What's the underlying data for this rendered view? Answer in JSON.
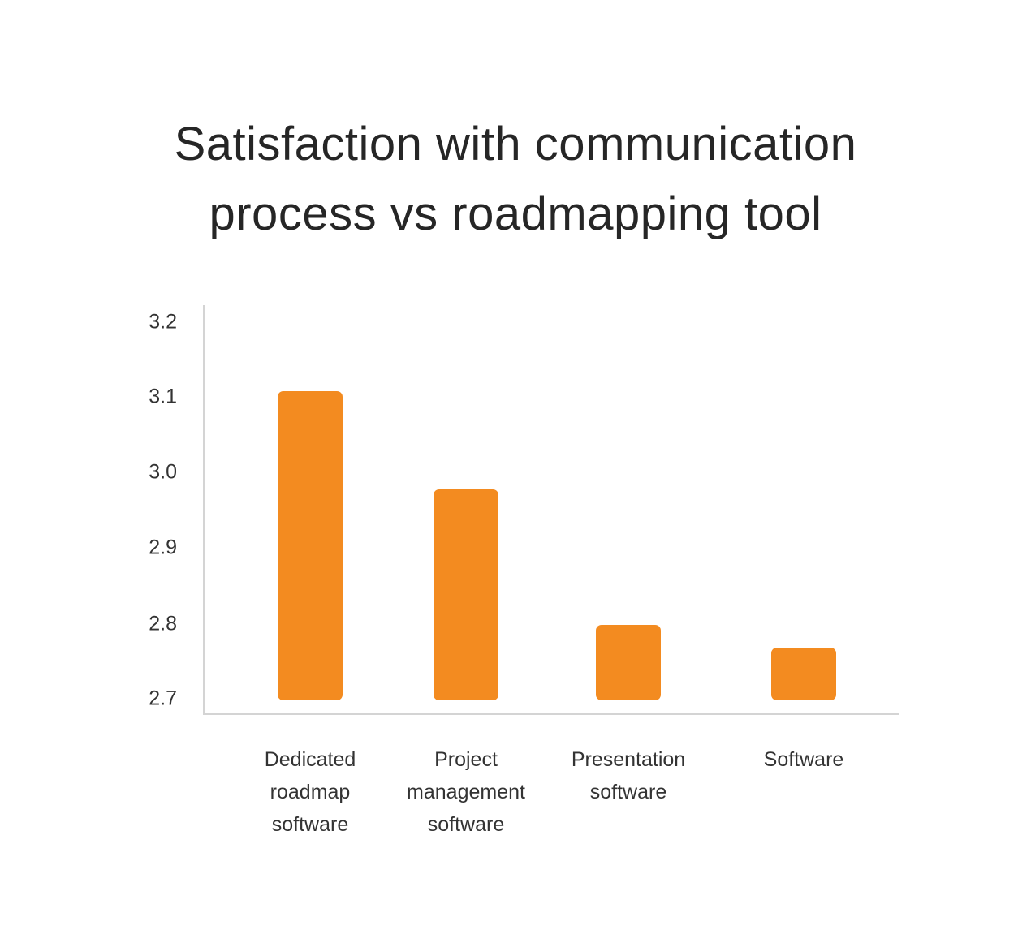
{
  "chart_data": {
    "type": "bar",
    "title": "Satisfaction with communication process vs roadmapping tool",
    "title_lines": [
      "Satisfaction with communication",
      "process vs roadmapping tool"
    ],
    "categories": [
      "Dedicated roadmap software",
      "Project management software",
      "Presentation software",
      "Software"
    ],
    "category_lines": [
      [
        "Dedicated",
        "roadmap",
        "software"
      ],
      [
        "Project",
        "management",
        "software"
      ],
      [
        "Presentation",
        "software"
      ],
      [
        "Software"
      ]
    ],
    "values": [
      3.11,
      2.98,
      2.8,
      2.77
    ],
    "xlabel": "",
    "ylabel": "",
    "ylim": [
      2.7,
      3.2
    ],
    "yticks": [
      "3.2",
      "3.1",
      "3.0",
      "2.9",
      "2.8",
      "2.7"
    ],
    "grid": false,
    "legend": null,
    "bar_color": "#F38B20",
    "axis_color": "#D4D4D4"
  }
}
